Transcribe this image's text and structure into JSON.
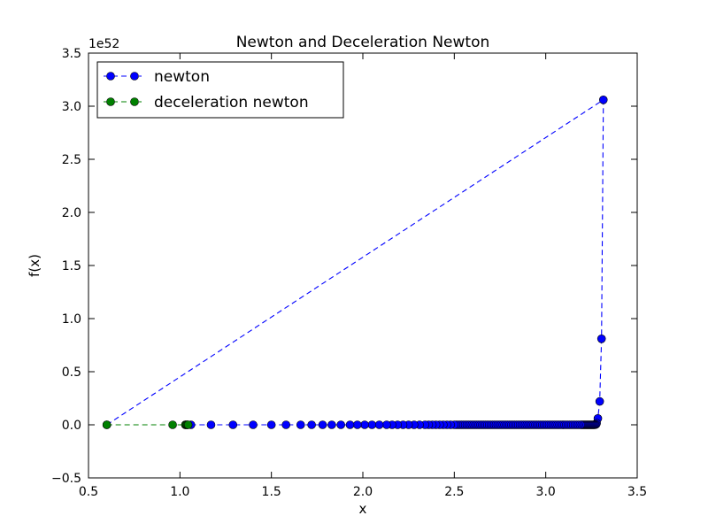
{
  "chart_data": {
    "type": "line",
    "title": "Newton and Deceleration Newton",
    "xlabel": "x",
    "ylabel": "f(x)",
    "y_offset_label": "1e52",
    "xlim": [
      0.5,
      3.5
    ],
    "ylim": [
      -0.5,
      3.5
    ],
    "x_ticks": [
      0.5,
      1.0,
      1.5,
      2.0,
      2.5,
      3.0,
      3.5
    ],
    "x_tick_labels": [
      "0.5",
      "1.0",
      "1.5",
      "2.0",
      "2.5",
      "3.0",
      "3.5"
    ],
    "y_ticks": [
      -0.5,
      0.0,
      0.5,
      1.0,
      1.5,
      2.0,
      2.5,
      3.0,
      3.5
    ],
    "y_tick_labels": [
      "−0.5",
      "0.0",
      "0.5",
      "1.0",
      "1.5",
      "2.0",
      "2.5",
      "3.0",
      "3.5"
    ],
    "grid": false,
    "legend_position": "upper-left",
    "series": [
      {
        "name": "newton",
        "color": "#0000ff",
        "x": [
          0.6,
          3.315,
          3.305,
          3.295,
          3.285,
          3.278,
          3.275,
          3.27,
          3.265,
          3.26,
          3.255,
          3.25,
          3.245,
          3.24,
          3.235,
          3.23,
          3.225,
          3.22,
          3.215,
          3.21,
          3.205,
          3.2,
          3.195,
          3.19,
          3.18,
          3.17,
          3.16,
          3.15,
          3.14,
          3.13,
          3.12,
          3.11,
          3.1,
          3.09,
          3.08,
          3.07,
          3.06,
          3.05,
          3.04,
          3.03,
          3.02,
          3.01,
          3.0,
          2.99,
          2.98,
          2.97,
          2.96,
          2.95,
          2.94,
          2.93,
          2.92,
          2.91,
          2.9,
          2.89,
          2.88,
          2.87,
          2.86,
          2.85,
          2.84,
          2.83,
          2.82,
          2.81,
          2.8,
          2.79,
          2.78,
          2.77,
          2.76,
          2.75,
          2.74,
          2.73,
          2.72,
          2.71,
          2.7,
          2.69,
          2.68,
          2.67,
          2.66,
          2.65,
          2.64,
          2.63,
          2.62,
          2.61,
          2.6,
          2.59,
          2.58,
          2.57,
          2.56,
          2.55,
          2.54,
          2.53,
          2.52,
          2.51,
          2.5,
          2.48,
          2.46,
          2.44,
          2.42,
          2.4,
          2.38,
          2.36,
          2.34,
          2.31,
          2.28,
          2.25,
          2.22,
          2.19,
          2.16,
          2.13,
          2.09,
          2.05,
          2.01,
          1.97,
          1.93,
          1.88,
          1.83,
          1.78,
          1.72,
          1.66,
          1.58,
          1.5,
          1.4,
          1.29,
          1.17,
          1.06,
          1.04,
          1.03
        ],
        "y": [
          0.0,
          3.06,
          0.81,
          0.22,
          0.06,
          0.015,
          0.004,
          0.001,
          0.0,
          0.0,
          0.0,
          0.0,
          0.0,
          0.0,
          0.0,
          0.0,
          0.0,
          0.0,
          0.0,
          0.0,
          0.0,
          0.0,
          0.0,
          0.0,
          0.0,
          0.0,
          0.0,
          0.0,
          0.0,
          0.0,
          0.0,
          0.0,
          0.0,
          0.0,
          0.0,
          0.0,
          0.0,
          0.0,
          0.0,
          0.0,
          0.0,
          0.0,
          0.0,
          0.0,
          0.0,
          0.0,
          0.0,
          0.0,
          0.0,
          0.0,
          0.0,
          0.0,
          0.0,
          0.0,
          0.0,
          0.0,
          0.0,
          0.0,
          0.0,
          0.0,
          0.0,
          0.0,
          0.0,
          0.0,
          0.0,
          0.0,
          0.0,
          0.0,
          0.0,
          0.0,
          0.0,
          0.0,
          0.0,
          0.0,
          0.0,
          0.0,
          0.0,
          0.0,
          0.0,
          0.0,
          0.0,
          0.0,
          0.0,
          0.0,
          0.0,
          0.0,
          0.0,
          0.0,
          0.0,
          0.0,
          0.0,
          0.0,
          0.0,
          0.0,
          0.0,
          0.0,
          0.0,
          0.0,
          0.0,
          0.0,
          0.0,
          0.0,
          0.0,
          0.0,
          0.0,
          0.0,
          0.0,
          0.0,
          0.0,
          0.0,
          0.0,
          0.0,
          0.0,
          0.0,
          0.0,
          0.0,
          0.0,
          0.0,
          0.0,
          0.0,
          0.0,
          0.0,
          0.0,
          0.0,
          0.0,
          0.0
        ]
      },
      {
        "name": "deceleration newton",
        "color": "#008000",
        "x": [
          0.6,
          0.96,
          1.03,
          1.035,
          1.04,
          1.045
        ],
        "y": [
          0.0,
          0.0,
          0.0,
          0.0,
          0.0,
          0.0
        ]
      }
    ]
  }
}
